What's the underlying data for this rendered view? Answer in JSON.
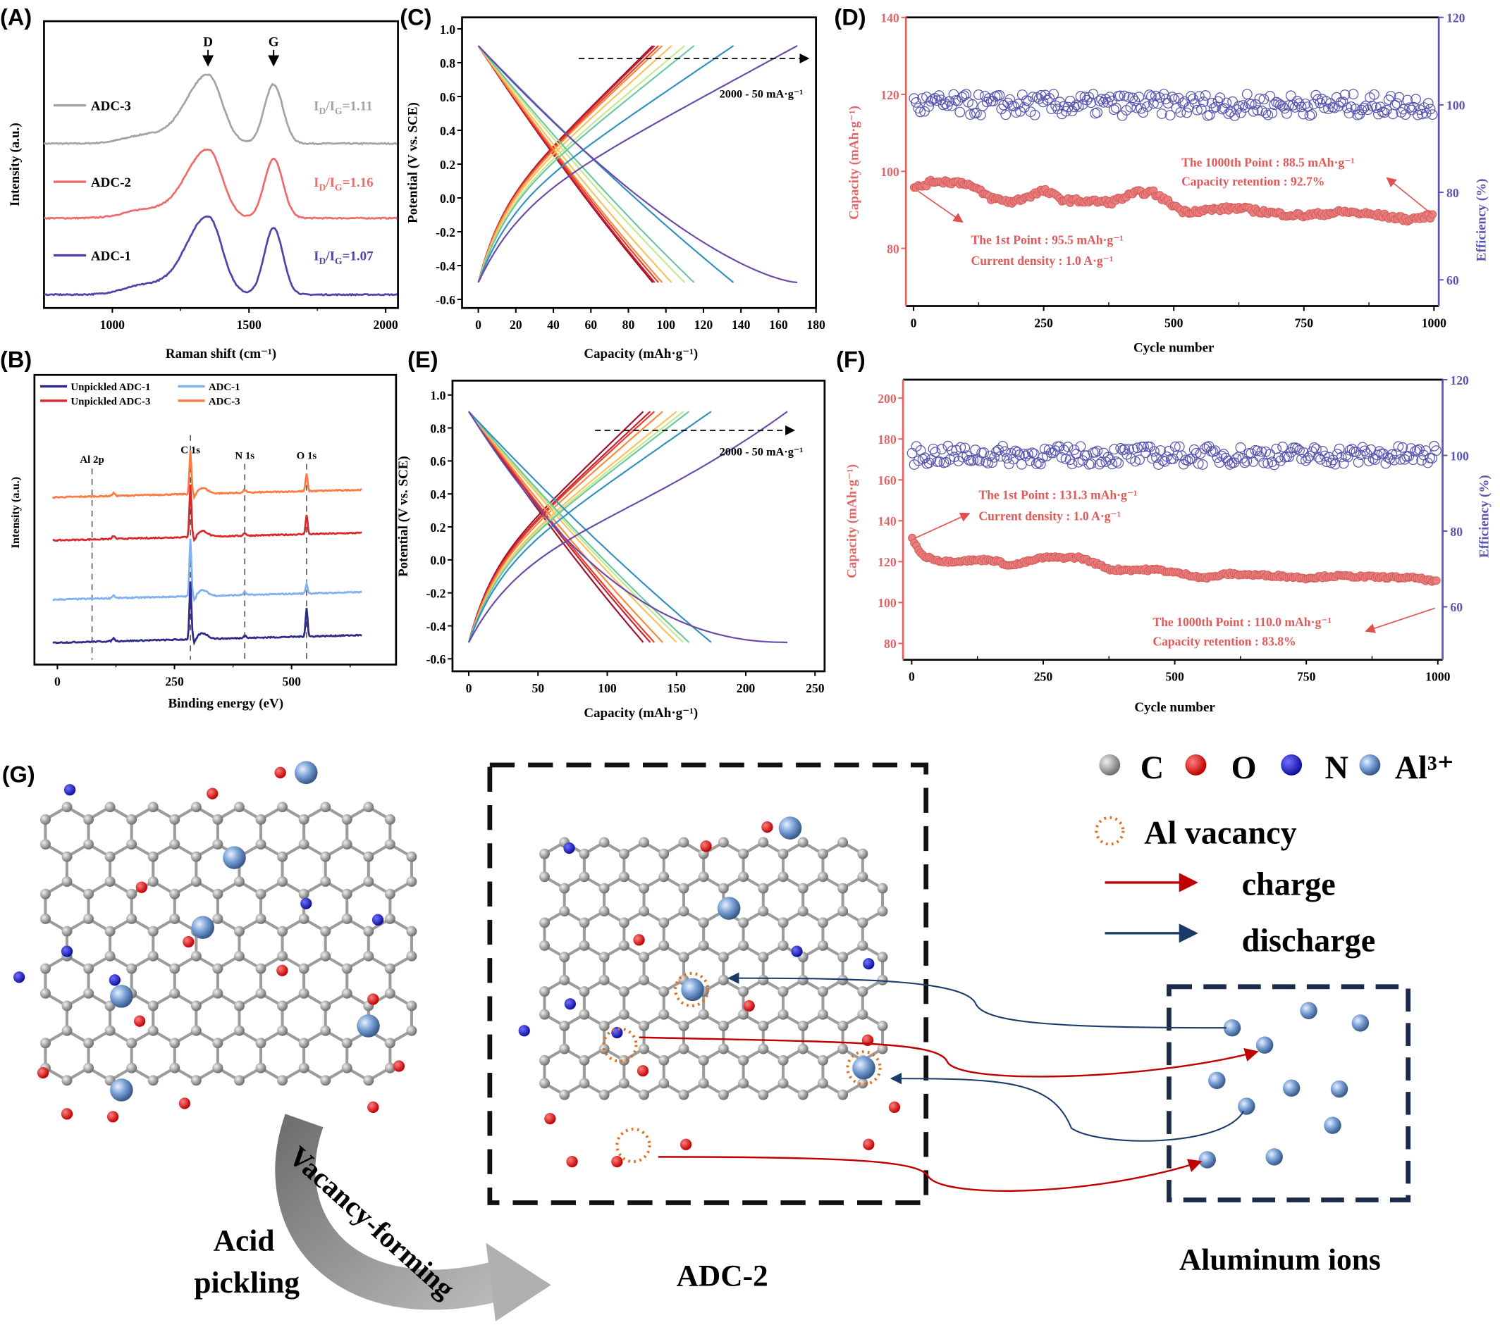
{
  "panel_labels": {
    "A": "(A)",
    "B": "(B)",
    "C": "(C)",
    "D": "(D)",
    "E": "(E)",
    "F": "(F)",
    "G": "(G)"
  },
  "chart_data": [
    {
      "panel": "A",
      "type": "line",
      "xlabel": "Raman shift (cm⁻¹)",
      "ylabel": "Intensity (a.u.)",
      "xlim": [
        750,
        2045
      ],
      "xticks": [
        1000,
        1500,
        2000
      ],
      "xtick_labels": [
        "1000",
        "1500",
        "2000"
      ],
      "peaks": [
        {
          "label": "D",
          "x": 1350
        },
        {
          "label": "G",
          "x": 1590
        }
      ],
      "ratio_parts": [
        "I",
        "D",
        "/I",
        "G",
        "="
      ],
      "series": [
        {
          "name": "ADC-3",
          "color": "#a3a3a3",
          "id_ig": "1.11"
        },
        {
          "name": "ADC-2",
          "color": "#ef6b6b",
          "id_ig": "1.16"
        },
        {
          "name": "ADC-1",
          "color": "#4b46a8",
          "id_ig": "1.07"
        }
      ]
    },
    {
      "panel": "B",
      "type": "line",
      "xlabel": "Binding energy (eV)",
      "ylabel": "Intensity (a.u.)",
      "xlim": [
        -49,
        723
      ],
      "xticks": [
        0,
        250,
        500
      ],
      "xtick_labels": [
        "0",
        "250",
        "500"
      ],
      "legend": [
        "Unpickled ADC-1",
        "ADC-1",
        "Unpickled ADC-3",
        "ADC-3"
      ],
      "series": [
        {
          "name": "ADC-3",
          "color": "#ff7a40"
        },
        {
          "name": "Unpickled ADC-3",
          "color": "#d8282c"
        },
        {
          "name": "ADC-1",
          "color": "#7fb0f0"
        },
        {
          "name": "Unpickled ADC-1",
          "color": "#2e2a8a"
        }
      ],
      "annotations": [
        {
          "label": "Al 2p",
          "x": 74
        },
        {
          "label": "C 1s",
          "x": 284
        },
        {
          "label": "N 1s",
          "x": 400
        },
        {
          "label": "O 1s",
          "x": 532
        }
      ]
    },
    {
      "panel": "C",
      "type": "line",
      "xlabel": "Capacity (mAh·g⁻¹)",
      "ylabel": "Potential (V vs. SCE)",
      "xlim": [
        0,
        180
      ],
      "ylim": [
        -0.6,
        1.0
      ],
      "xticks": [
        0,
        20,
        40,
        60,
        80,
        100,
        120,
        140,
        160,
        180
      ],
      "xtick_labels": [
        "0",
        "20",
        "40",
        "60",
        "80",
        "100",
        "120",
        "140",
        "160",
        "180"
      ],
      "yticks": [
        -0.6,
        -0.4,
        -0.2,
        0.0,
        0.2,
        0.4,
        0.6,
        0.8,
        1.0
      ],
      "ytick_labels": [
        "-0.6",
        "-0.4",
        "-0.2",
        "0.0",
        "0.2",
        "0.4",
        "0.6",
        "0.8",
        "1.0"
      ],
      "annotation": "2000 - 50  mA·g⁻¹",
      "voltage_window": [
        -0.5,
        0.9
      ],
      "capacities": [
        93,
        94,
        96,
        98,
        103,
        110,
        115,
        136,
        170
      ],
      "colors": [
        "#a0102a",
        "#c8202e",
        "#e8402e",
        "#f88a3a",
        "#fbc060",
        "#c8e890",
        "#6cc8a0",
        "#3290c0",
        "#6a4aa8"
      ]
    },
    {
      "panel": "D",
      "type": "scatter",
      "xlabel": "Cycle number",
      "ylabel": "Capacity (mAh·g⁻¹)",
      "y2label": "Efficiency (%)",
      "xlim": [
        0,
        1000
      ],
      "ylim": [
        65,
        140
      ],
      "y2lim": [
        54,
        120
      ],
      "xticks": [
        0,
        250,
        500,
        750,
        1000
      ],
      "xtick_labels": [
        "0",
        "250",
        "500",
        "750",
        "1000"
      ],
      "yticks": [
        80,
        100,
        120,
        140
      ],
      "ytick_labels": [
        "80",
        "100",
        "120",
        "140"
      ],
      "y2ticks": [
        60,
        80,
        100,
        120
      ],
      "y2tick_labels": [
        "60",
        "80",
        "100",
        "120"
      ],
      "capacity_color": "#e06666",
      "efficiency_color": "#5a55b0",
      "capacity_anchors": [
        [
          1,
          95.5
        ],
        [
          40,
          97.5
        ],
        [
          100,
          97
        ],
        [
          150,
          93
        ],
        [
          190,
          92
        ],
        [
          250,
          95
        ],
        [
          290,
          92.5
        ],
        [
          380,
          92
        ],
        [
          430,
          94.5
        ],
        [
          460,
          94.5
        ],
        [
          520,
          89.5
        ],
        [
          620,
          90.5
        ],
        [
          700,
          89
        ],
        [
          750,
          88.5
        ],
        [
          830,
          89.5
        ],
        [
          900,
          88.5
        ],
        [
          950,
          87.5
        ],
        [
          1000,
          88.5
        ]
      ],
      "efficiency_mean": 100,
      "annotations": {
        "first_point": "The 1st Point : 95.5 mAh·g⁻¹",
        "current_density": "Current density : 1.0 A·g⁻¹",
        "last_point": "The 1000th Point : 88.5 mAh·g⁻¹",
        "retention": "Capacity retention : 92.7%"
      }
    },
    {
      "panel": "E",
      "type": "line",
      "xlabel": "Capacity (mAh·g⁻¹)",
      "ylabel": "Potential (V vs. SCE)",
      "xlim": [
        0,
        250
      ],
      "ylim": [
        -0.6,
        1.0
      ],
      "xticks": [
        0,
        50,
        100,
        150,
        200,
        250
      ],
      "xtick_labels": [
        "0",
        "50",
        "100",
        "150",
        "200",
        "250"
      ],
      "yticks": [
        -0.6,
        -0.4,
        -0.2,
        0.0,
        0.2,
        0.4,
        0.6,
        0.8,
        1.0
      ],
      "ytick_labels": [
        "-0.6",
        "-0.4",
        "-0.2",
        "0.0",
        "0.2",
        "0.4",
        "0.6",
        "0.8",
        "1.0"
      ],
      "annotation": "2000 - 50  mA·g⁻¹",
      "voltage_window": [
        -0.5,
        0.9
      ],
      "capacities": [
        126,
        131,
        134,
        140,
        150,
        155,
        159,
        175,
        230
      ],
      "colors": [
        "#a0102a",
        "#c8202e",
        "#e8402e",
        "#f88a3a",
        "#fbc060",
        "#c8e890",
        "#6cc8a0",
        "#3290c0",
        "#6a4aa8"
      ]
    },
    {
      "panel": "F",
      "type": "scatter",
      "xlabel": "Cycle number",
      "ylabel": "Capacity (mAh·g⁻¹)",
      "y2label": "Efficiency (%)",
      "xlim": [
        0,
        1000
      ],
      "ylim": [
        72,
        209
      ],
      "y2lim": [
        46,
        120
      ],
      "xticks": [
        0,
        250,
        500,
        750,
        1000
      ],
      "xtick_labels": [
        "0",
        "250",
        "500",
        "750",
        "1000"
      ],
      "yticks": [
        80,
        100,
        120,
        140,
        160,
        180,
        200
      ],
      "ytick_labels": [
        "80",
        "100",
        "120",
        "140",
        "160",
        "180",
        "200"
      ],
      "y2ticks": [
        60,
        80,
        100,
        120
      ],
      "y2tick_labels": [
        "60",
        "80",
        "100",
        "120"
      ],
      "capacity_color": "#e06666",
      "efficiency_color": "#5a55b0",
      "capacity_anchors": [
        [
          1,
          131.3
        ],
        [
          20,
          123
        ],
        [
          60,
          120
        ],
        [
          150,
          121
        ],
        [
          190,
          118
        ],
        [
          250,
          122
        ],
        [
          320,
          122
        ],
        [
          380,
          116
        ],
        [
          470,
          116
        ],
        [
          560,
          112
        ],
        [
          600,
          114
        ],
        [
          700,
          113
        ],
        [
          750,
          112
        ],
        [
          800,
          113
        ],
        [
          960,
          112
        ],
        [
          1000,
          110
        ]
      ],
      "efficiency_mean": 100,
      "annotations": {
        "first_point": "The 1st Point : 131.3 mAh·g⁻¹",
        "current_density": "Current density : 1.0 A·g⁻¹",
        "last_point": "The 1000th Point : 110.0 mAh·g⁻¹",
        "retention": "Capacity retention : 83.8%"
      }
    }
  ],
  "schematic": {
    "legend": {
      "atoms": [
        {
          "symbol": "C",
          "color": "#9a9a9a"
        },
        {
          "symbol": "O",
          "color": "#e02020"
        },
        {
          "symbol": "N",
          "color": "#2424d0"
        },
        {
          "symbol": "Al³⁺",
          "color": "#7aa2d6"
        }
      ],
      "vacancy": "Al vacancy",
      "charge": "charge",
      "discharge": "discharge"
    },
    "vacancy_color": "#e07020",
    "charge_color": "#c00000",
    "discharge_color": "#1a3a6a",
    "process_lines": [
      "Acid",
      "pickling"
    ],
    "arrow_label": "Vacancy-forming",
    "product": "ADC-2",
    "ions_box": "Aluminum ions"
  }
}
